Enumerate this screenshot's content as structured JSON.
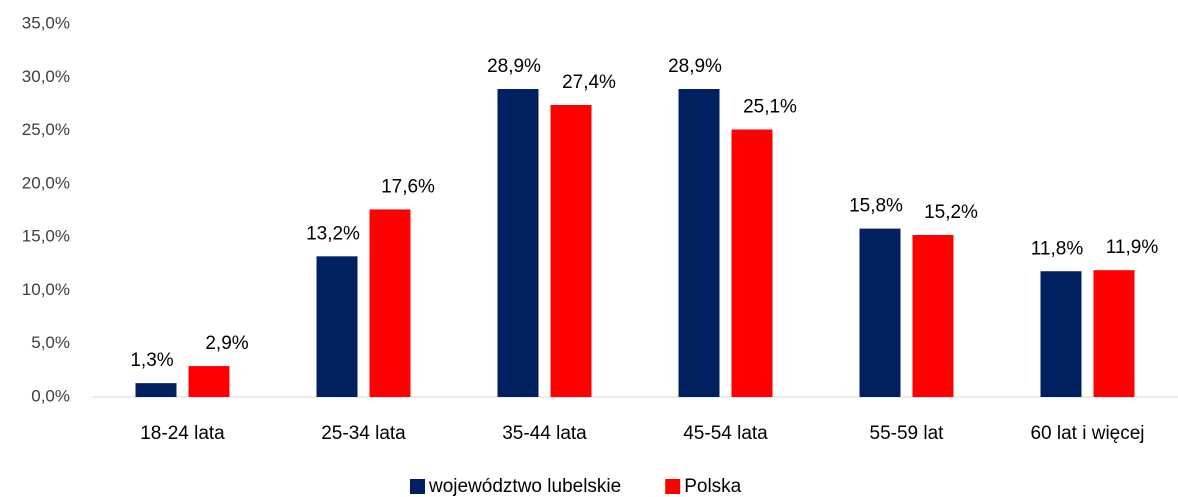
{
  "chart_data": {
    "type": "bar",
    "categories": [
      "18-24 lata",
      "25-34 lata",
      "35-44 lata",
      "45-54 lata",
      "55-59 lat",
      "60 lat i więcej"
    ],
    "series": [
      {
        "name": "województwo lubelskie",
        "color": "#002060",
        "values": [
          1.3,
          13.2,
          28.9,
          28.9,
          15.8,
          11.8
        ],
        "value_labels": [
          "1,3%",
          "13,2%",
          "28,9%",
          "28,9%",
          "15,8%",
          "11,8%"
        ]
      },
      {
        "name": "Polska",
        "color": "#ff0000",
        "values": [
          2.9,
          17.6,
          27.4,
          25.1,
          15.2,
          11.9
        ],
        "value_labels": [
          "2,9%",
          "17,6%",
          "27,4%",
          "25,1%",
          "15,2%",
          "11,9%"
        ]
      }
    ],
    "ylim": [
      0,
      35
    ],
    "yticks": [
      {
        "value": 0,
        "label": "0,0%"
      },
      {
        "value": 5,
        "label": "5,0%"
      },
      {
        "value": 10,
        "label": "10,0%"
      },
      {
        "value": 15,
        "label": "15,0%"
      },
      {
        "value": 20,
        "label": "20,0%"
      },
      {
        "value": 25,
        "label": "25,0%"
      },
      {
        "value": 30,
        "label": "30,0%"
      },
      {
        "value": 35,
        "label": "35,0%"
      }
    ],
    "grid": false,
    "legend": "bottom"
  }
}
